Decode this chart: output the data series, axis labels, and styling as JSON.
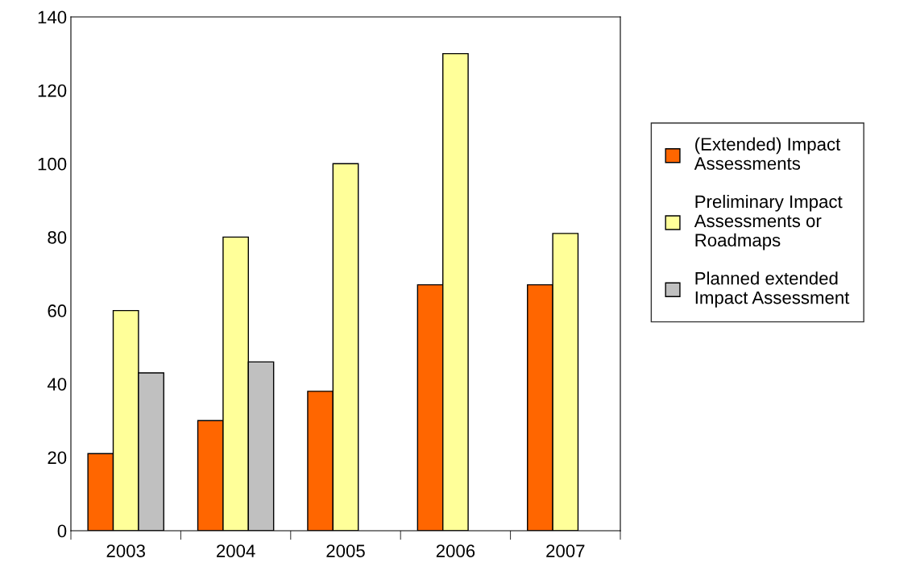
{
  "chart_data": {
    "type": "bar",
    "categories": [
      "2003",
      "2004",
      "2005",
      "2006",
      "2007"
    ],
    "series": [
      {
        "name": "(Extended) Impact Assessments",
        "color": "#ff6600",
        "values": [
          21,
          30,
          38,
          67,
          67
        ]
      },
      {
        "name": "Preliminary Impact Assessments or Roadmaps",
        "color": "#ffff99",
        "values": [
          60,
          80,
          100,
          130,
          81
        ]
      },
      {
        "name": "Planned extended Impact Assessment",
        "color": "#c0c0c0",
        "values": [
          43,
          46,
          null,
          null,
          null
        ]
      }
    ],
    "ylim": [
      0,
      140
    ],
    "yticks": [
      0,
      20,
      40,
      60,
      80,
      100,
      120,
      140
    ],
    "grid": false,
    "legend": "right"
  }
}
